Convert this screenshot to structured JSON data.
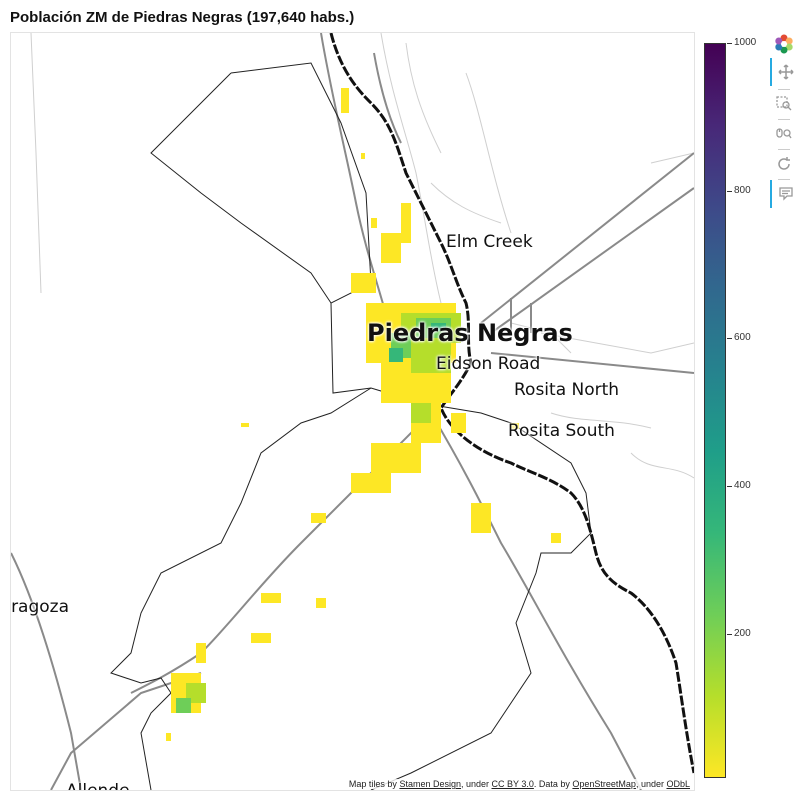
{
  "title": "Población ZM de Piedras Negras (197,640 habs.)",
  "map": {
    "places": [
      {
        "name": "Elm Creek",
        "size": 17,
        "bold": false
      },
      {
        "name": "Piedras Negras",
        "size": 24,
        "bold": true
      },
      {
        "name": "Eidson Road",
        "size": 17,
        "bold": false
      },
      {
        "name": "Rosita North",
        "size": 17,
        "bold": false
      },
      {
        "name": "Rosita South",
        "size": 17,
        "bold": false
      },
      {
        "name": "Zaragoza",
        "size": 17,
        "bold": false
      },
      {
        "name": "Allende",
        "size": 17,
        "bold": false
      }
    ],
    "attribution": {
      "prefix": "Map tiles by ",
      "tiles_link": "Stamen Design",
      "mid1": ", under ",
      "license1": "CC BY 3.0",
      "mid2": ". Data by ",
      "data_link": "OpenStreetMap",
      "mid3": ", under ",
      "license2": "ODbL"
    }
  },
  "colorbar": {
    "min": 0,
    "max": 1000,
    "ticks": [
      "1000",
      "800",
      "600",
      "400",
      "200"
    ],
    "palette": [
      "#fde725",
      "#b5de2b",
      "#6ece58",
      "#35b779",
      "#1f9e89",
      "#26828e",
      "#31688e",
      "#3e4989",
      "#482878",
      "#440154"
    ]
  },
  "toolbar": {
    "tools": [
      {
        "name": "bokeh-logo-icon",
        "icon": "bokeh-logo",
        "interactive": true
      },
      {
        "name": "pan-tool-icon",
        "icon": "pan",
        "interactive": true,
        "active": true
      },
      {
        "name": "box-zoom-tool-icon",
        "icon": "box-zoom",
        "interactive": true
      },
      {
        "name": "wheel-zoom-tool-icon",
        "icon": "wheel-zoom",
        "interactive": true
      },
      {
        "name": "reset-tool-icon",
        "icon": "reset",
        "interactive": true
      },
      {
        "name": "hover-tool-icon",
        "icon": "hover",
        "interactive": true,
        "active": true
      }
    ]
  }
}
